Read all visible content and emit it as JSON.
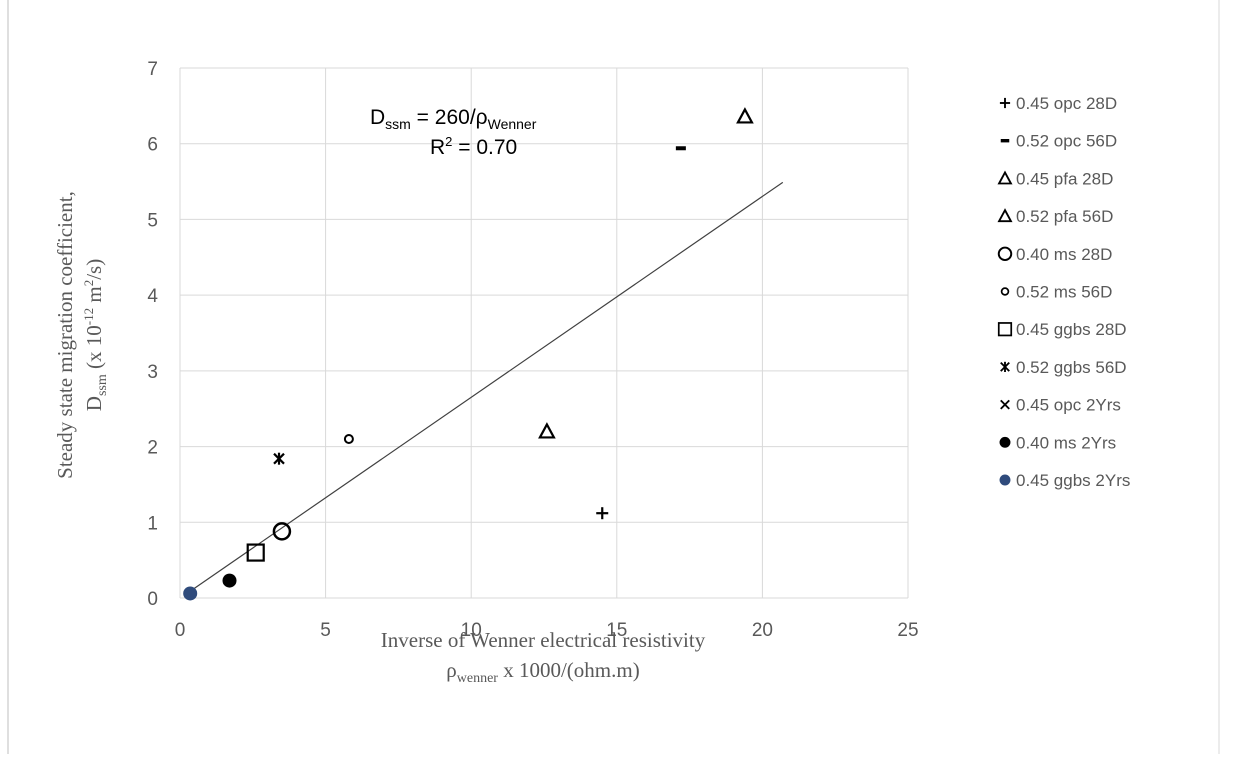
{
  "chart_data": {
    "type": "scatter",
    "title": "",
    "xlabel_line1": "Inverse of Wenner electrical resistivity",
    "xlabel_line2": {
      "pre": "ρ",
      "sub": "wenner",
      "post": " x 1000/(ohm.m)"
    },
    "ylabel_line1": "Steady state migration coefficient,",
    "ylabel_line2": {
      "pre": "D",
      "sub": "ssm",
      "mid": " (x 10",
      "sup": "-12",
      "mid2": " m",
      "sup2": "2",
      "post": "/s)"
    },
    "xlim": [
      0,
      25
    ],
    "ylim": [
      0,
      7
    ],
    "xticks": [
      0,
      5,
      10,
      15,
      20,
      25
    ],
    "yticks": [
      0,
      1,
      2,
      3,
      4,
      5,
      6,
      7
    ],
    "grid": true,
    "legend_position": "right",
    "annotation": {
      "eq_pre": "D",
      "eq_sub": "ssm",
      "eq_mid": " = 260/ρ",
      "eq_sub2": "Wenner",
      "r2_pre": "R",
      "r2_sup": "2",
      "r2_post": " = 0.70"
    },
    "trendline": {
      "type": "power",
      "from": [
        0.2,
        0.05
      ],
      "to": [
        20.7,
        5.49
      ]
    },
    "series": [
      {
        "name": "0.45 opc 28D",
        "marker": "plus",
        "color": "#000000",
        "points": [
          [
            14.5,
            1.12
          ]
        ]
      },
      {
        "name": "0.52 opc 56D",
        "marker": "dash",
        "color": "#000000",
        "points": [
          [
            17.2,
            5.94
          ]
        ]
      },
      {
        "name": "0.45 pfa 28D",
        "marker": "triangle",
        "color": "#000000",
        "points": [
          [
            19.4,
            6.36
          ]
        ]
      },
      {
        "name": "0.52 pfa 56D",
        "marker": "triangle",
        "color": "#000000",
        "points": [
          [
            12.6,
            2.2
          ]
        ]
      },
      {
        "name": "0.40 ms 28D",
        "marker": "circle-open",
        "color": "#000000",
        "points": [
          [
            3.5,
            0.88
          ]
        ]
      },
      {
        "name": "0.52 ms 56D",
        "marker": "circle-small",
        "color": "#000000",
        "points": [
          [
            5.8,
            2.1
          ]
        ]
      },
      {
        "name": "0.45 ggbs 28D",
        "marker": "square",
        "color": "#000000",
        "points": [
          [
            2.6,
            0.6
          ]
        ]
      },
      {
        "name": "0.52 ggbs 56D",
        "marker": "star",
        "color": "#000000",
        "points": [
          [
            3.4,
            1.84
          ]
        ]
      },
      {
        "name": "0.45 opc 2Yrs",
        "marker": "x",
        "color": "#000000",
        "points": []
      },
      {
        "name": "0.40 ms 2Yrs",
        "marker": "circle-filled",
        "color": "#000000",
        "points": [
          [
            1.7,
            0.23
          ]
        ]
      },
      {
        "name": "0.45 ggbs 2Yrs",
        "marker": "circle-filled",
        "color": "#2f4b7c",
        "points": [
          [
            0.35,
            0.06
          ]
        ]
      }
    ]
  }
}
